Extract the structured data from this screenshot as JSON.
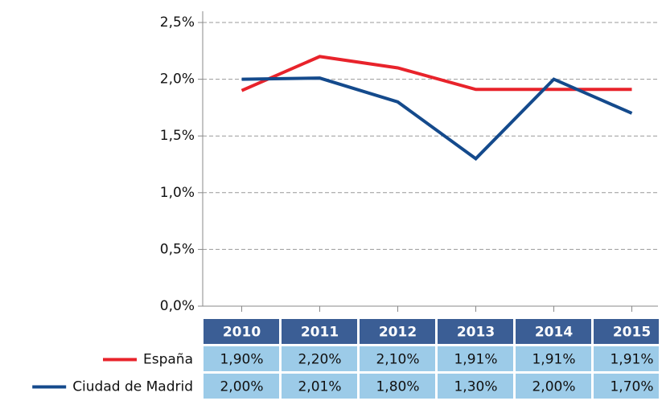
{
  "chart_data": {
    "type": "line",
    "categories": [
      "2010",
      "2011",
      "2012",
      "2013",
      "2014",
      "2015"
    ],
    "series": [
      {
        "name": "España",
        "color": "#e8232b",
        "values": [
          1.9,
          2.2,
          2.1,
          1.91,
          1.91,
          1.91
        ],
        "value_labels": [
          "1,90%",
          "2,20%",
          "2,10%",
          "1,91%",
          "1,91%",
          "1,91%"
        ]
      },
      {
        "name": "Ciudad de Madrid",
        "color": "#144a8c",
        "values": [
          2.0,
          2.01,
          1.8,
          1.3,
          2.0,
          1.7
        ],
        "value_labels": [
          "2,00%",
          "2,01%",
          "1,80%",
          "1,30%",
          "2,00%",
          "1,70%"
        ]
      }
    ],
    "ylim": [
      0,
      2.5
    ],
    "yticks": [
      {
        "value": 0,
        "label": "0,0%"
      },
      {
        "value": 0.5,
        "label": "0,5%"
      },
      {
        "value": 1.0,
        "label": "1,0%"
      },
      {
        "value": 1.5,
        "label": "1,5%"
      },
      {
        "value": 2.0,
        "label": "2,0%"
      },
      {
        "value": 2.5,
        "label": "2,5%"
      }
    ],
    "grid": true
  }
}
